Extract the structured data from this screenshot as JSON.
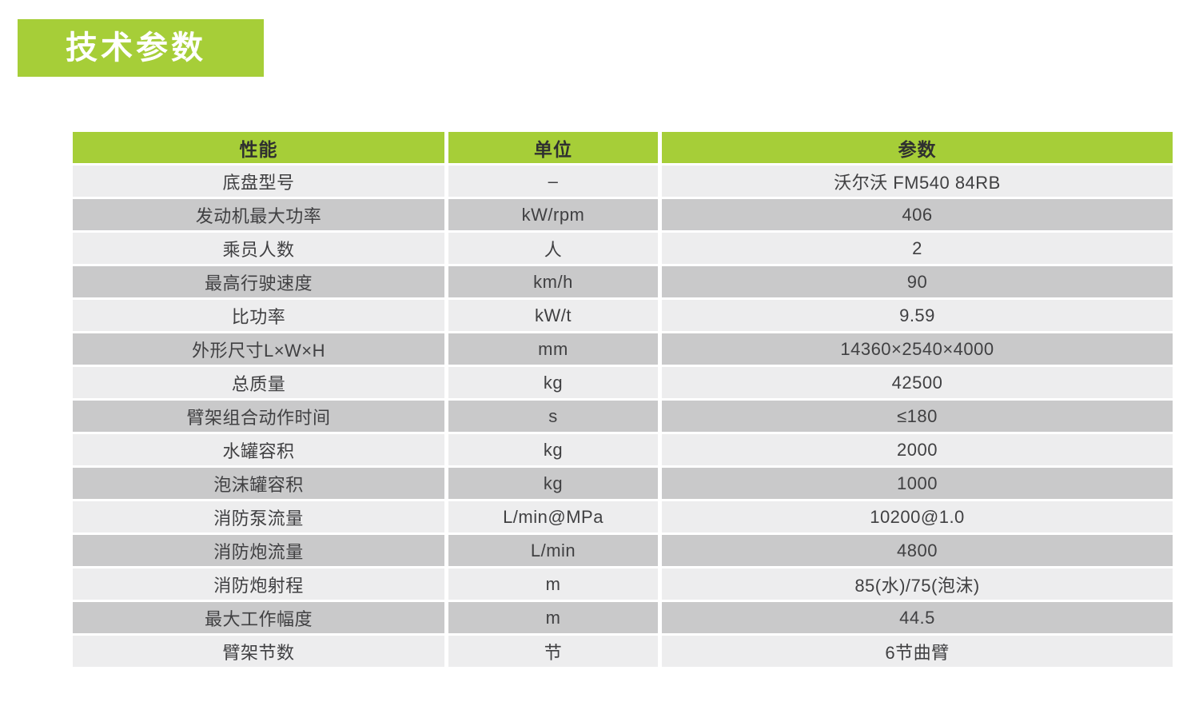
{
  "page_title": "技术参数",
  "colors": {
    "accent_green": "#a6ce38",
    "row_light": "#ededee",
    "row_dark": "#c9c9ca",
    "text_dark": "#404042",
    "title_text": "#ffffff"
  },
  "table": {
    "headers": [
      "性能",
      "单位",
      "参数"
    ],
    "rows": [
      {
        "name": "底盘型号",
        "unit": "–",
        "value": "沃尔沃 FM540 84RB"
      },
      {
        "name": "发动机最大功率",
        "unit": "kW/rpm",
        "value": "406"
      },
      {
        "name": "乘员人数",
        "unit": "人",
        "value": "2"
      },
      {
        "name": "最高行驶速度",
        "unit": "km/h",
        "value": "90"
      },
      {
        "name": "比功率",
        "unit": "kW/t",
        "value": "9.59"
      },
      {
        "name": "外形尺寸L×W×H",
        "unit": "mm",
        "value": "14360×2540×4000"
      },
      {
        "name": "总质量",
        "unit": "kg",
        "value": "42500"
      },
      {
        "name": "臂架组合动作时间",
        "unit": "s",
        "value": "≤180"
      },
      {
        "name": "水罐容积",
        "unit": "kg",
        "value": "2000"
      },
      {
        "name": "泡沫罐容积",
        "unit": "kg",
        "value": "1000"
      },
      {
        "name": "消防泵流量",
        "unit": "L/min@MPa",
        "value": "10200@1.0"
      },
      {
        "name": "消防炮流量",
        "unit": "L/min",
        "value": "4800"
      },
      {
        "name": "消防炮射程",
        "unit": "m",
        "value": "85(水)/75(泡沫)"
      },
      {
        "name": "最大工作幅度",
        "unit": "m",
        "value": "44.5"
      },
      {
        "name": "臂架节数",
        "unit": "节",
        "value": "6节曲臂"
      }
    ]
  }
}
